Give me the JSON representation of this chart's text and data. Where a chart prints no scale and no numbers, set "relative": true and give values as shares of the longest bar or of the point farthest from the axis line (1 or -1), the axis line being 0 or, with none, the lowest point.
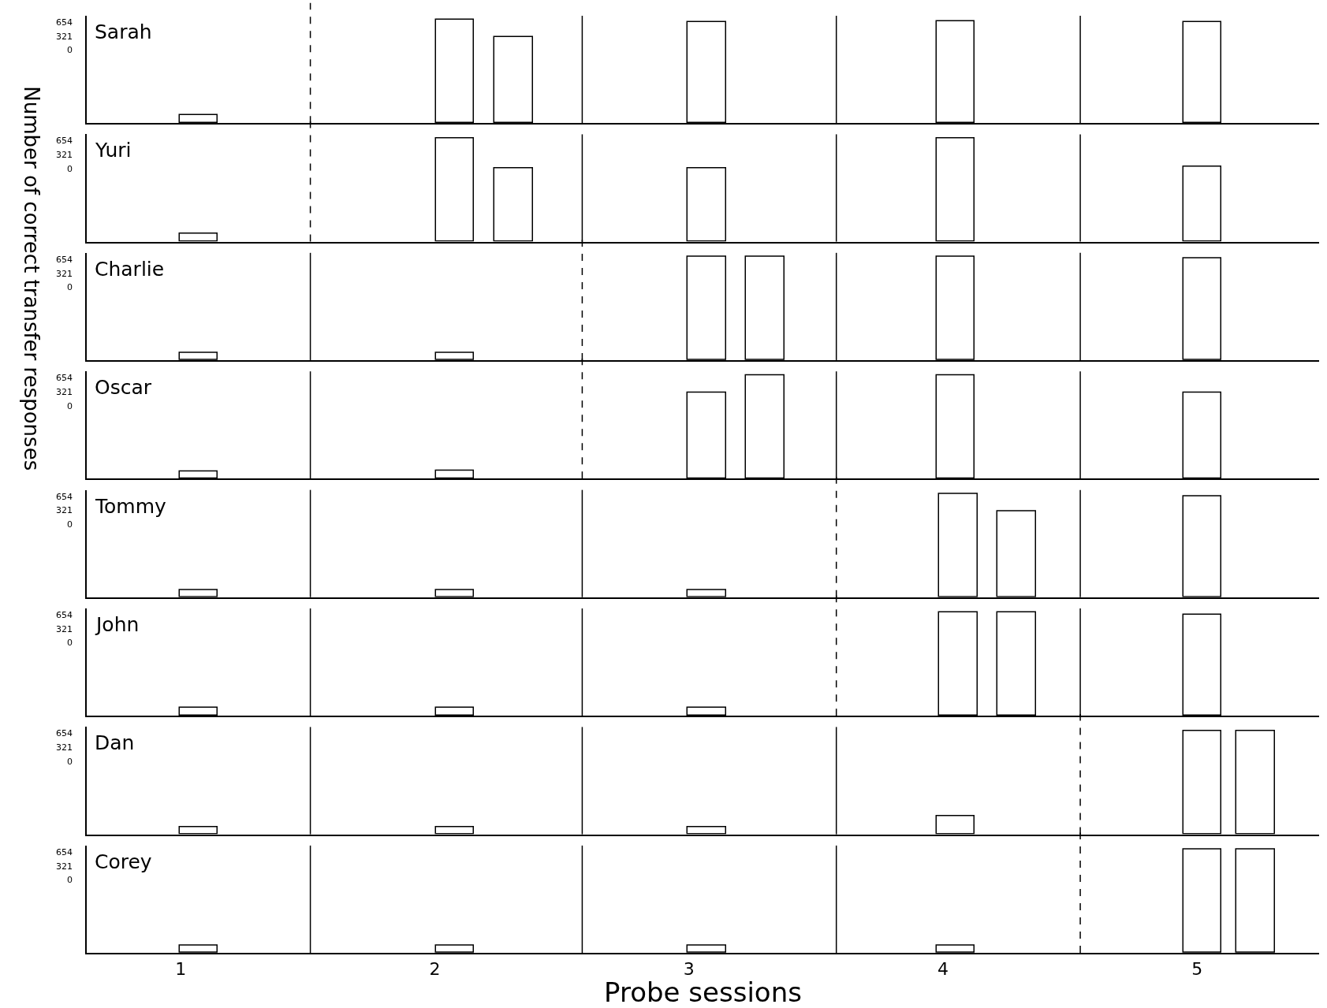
{
  "chart_data": [
    {
      "type": "bar",
      "relative": true,
      "x": [
        1.07,
        2.08,
        2.31,
        3.07,
        4.05,
        5.02
      ],
      "values": [
        0.08,
        1.0,
        0.83,
        0.98,
        0.99,
        0.98
      ],
      "color": "#ffffff",
      "xlim": [
        0.63,
        5.48
      ],
      "tick_labels": false,
      "ylabel": "Number of correct transfer responses",
      "annotations": [
        "Sarah",
        "654",
        "321",
        "0"
      ],
      "ref_lines": [
        {
          "axis": "x",
          "value": 1.51,
          "line_style": "dashed"
        },
        {
          "axis": "x",
          "value": 2.58,
          "line_style": "solid"
        },
        {
          "axis": "x",
          "value": 3.58,
          "line_style": "solid"
        },
        {
          "axis": "x",
          "value": 4.54,
          "line_style": "solid"
        }
      ]
    },
    {
      "type": "bar",
      "relative": true,
      "x": [
        1.07,
        2.08,
        2.31,
        3.07,
        4.05,
        5.02
      ],
      "values": [
        0.08,
        1.0,
        0.71,
        0.71,
        1.0,
        0.73
      ],
      "color": "#ffffff",
      "xlim": [
        0.63,
        5.48
      ],
      "tick_labels": false,
      "annotations": [
        "Yuri",
        "654",
        "321",
        "0"
      ],
      "ref_lines": [
        {
          "axis": "x",
          "value": 1.51,
          "line_style": "dashed"
        },
        {
          "axis": "x",
          "value": 2.58,
          "line_style": "solid"
        },
        {
          "axis": "x",
          "value": 3.58,
          "line_style": "solid"
        },
        {
          "axis": "x",
          "value": 4.54,
          "line_style": "solid"
        }
      ]
    },
    {
      "type": "bar",
      "relative": true,
      "x": [
        1.07,
        2.08,
        3.07,
        3.3,
        4.05,
        5.02
      ],
      "values": [
        0.07,
        0.07,
        1.0,
        1.0,
        1.0,
        0.99
      ],
      "color": "#ffffff",
      "xlim": [
        0.63,
        5.48
      ],
      "tick_labels": false,
      "annotations": [
        "Charlie",
        "654",
        "321",
        "0"
      ],
      "ref_lines": [
        {
          "axis": "x",
          "value": 1.51,
          "line_style": "solid"
        },
        {
          "axis": "x",
          "value": 2.58,
          "line_style": "dashed"
        },
        {
          "axis": "x",
          "value": 3.58,
          "line_style": "solid"
        },
        {
          "axis": "x",
          "value": 4.54,
          "line_style": "solid"
        }
      ]
    },
    {
      "type": "bar",
      "relative": true,
      "x": [
        1.07,
        2.08,
        3.07,
        3.3,
        4.05,
        5.02
      ],
      "values": [
        0.07,
        0.08,
        0.83,
        1.0,
        1.0,
        0.83
      ],
      "color": "#ffffff",
      "xlim": [
        0.63,
        5.48
      ],
      "tick_labels": false,
      "annotations": [
        "Oscar",
        "654",
        "321",
        "0"
      ],
      "ref_lines": [
        {
          "axis": "x",
          "value": 1.51,
          "line_style": "solid"
        },
        {
          "axis": "x",
          "value": 2.58,
          "line_style": "dashed"
        },
        {
          "axis": "x",
          "value": 3.58,
          "line_style": "solid"
        },
        {
          "axis": "x",
          "value": 4.54,
          "line_style": "solid"
        }
      ]
    },
    {
      "type": "bar",
      "relative": true,
      "x": [
        1.07,
        2.08,
        3.07,
        4.06,
        4.29,
        5.02
      ],
      "values": [
        0.07,
        0.07,
        0.07,
        1.0,
        0.83,
        0.98
      ],
      "color": "#ffffff",
      "xlim": [
        0.63,
        5.48
      ],
      "tick_labels": false,
      "annotations": [
        "Tommy",
        "654",
        "321",
        "0"
      ],
      "ref_lines": [
        {
          "axis": "x",
          "value": 1.51,
          "line_style": "solid"
        },
        {
          "axis": "x",
          "value": 2.58,
          "line_style": "solid"
        },
        {
          "axis": "x",
          "value": 3.58,
          "line_style": "dashed"
        },
        {
          "axis": "x",
          "value": 4.54,
          "line_style": "solid"
        }
      ]
    },
    {
      "type": "bar",
      "relative": true,
      "x": [
        1.07,
        2.08,
        3.07,
        4.06,
        4.29,
        5.02
      ],
      "values": [
        0.08,
        0.08,
        0.08,
        1.0,
        1.0,
        0.98
      ],
      "color": "#ffffff",
      "xlim": [
        0.63,
        5.48
      ],
      "tick_labels": false,
      "annotations": [
        "John",
        "654",
        "321",
        "0"
      ],
      "ref_lines": [
        {
          "axis": "x",
          "value": 1.51,
          "line_style": "solid"
        },
        {
          "axis": "x",
          "value": 2.58,
          "line_style": "solid"
        },
        {
          "axis": "x",
          "value": 3.58,
          "line_style": "dashed"
        },
        {
          "axis": "x",
          "value": 4.54,
          "line_style": "solid"
        }
      ]
    },
    {
      "type": "bar",
      "relative": true,
      "x": [
        1.07,
        2.08,
        3.07,
        4.05,
        5.02,
        5.23
      ],
      "values": [
        0.07,
        0.07,
        0.07,
        0.18,
        1.0,
        1.0
      ],
      "color": "#ffffff",
      "xlim": [
        0.63,
        5.48
      ],
      "tick_labels": false,
      "annotations": [
        "Dan",
        "654",
        "321",
        "0"
      ],
      "ref_lines": [
        {
          "axis": "x",
          "value": 1.51,
          "line_style": "solid"
        },
        {
          "axis": "x",
          "value": 2.58,
          "line_style": "solid"
        },
        {
          "axis": "x",
          "value": 3.58,
          "line_style": "solid"
        },
        {
          "axis": "x",
          "value": 4.54,
          "line_style": "dashed"
        }
      ]
    },
    {
      "type": "bar",
      "relative": true,
      "x": [
        1.07,
        2.08,
        3.07,
        4.05,
        5.02,
        5.23
      ],
      "values": [
        0.07,
        0.07,
        0.07,
        0.07,
        1.0,
        1.0
      ],
      "color": "#ffffff",
      "xlim": [
        0.63,
        5.48
      ],
      "xticks": [
        1,
        2,
        3,
        4,
        5
      ],
      "tick_labels": "x",
      "xlabel": "Probe sessions",
      "annotations": [
        "Corey",
        "654",
        "321",
        "0"
      ],
      "ref_lines": [
        {
          "axis": "x",
          "value": 1.51,
          "line_style": "solid"
        },
        {
          "axis": "x",
          "value": 2.58,
          "line_style": "solid"
        },
        {
          "axis": "x",
          "value": 3.58,
          "line_style": "solid"
        },
        {
          "axis": "x",
          "value": 4.54,
          "line_style": "dashed"
        }
      ]
    }
  ]
}
